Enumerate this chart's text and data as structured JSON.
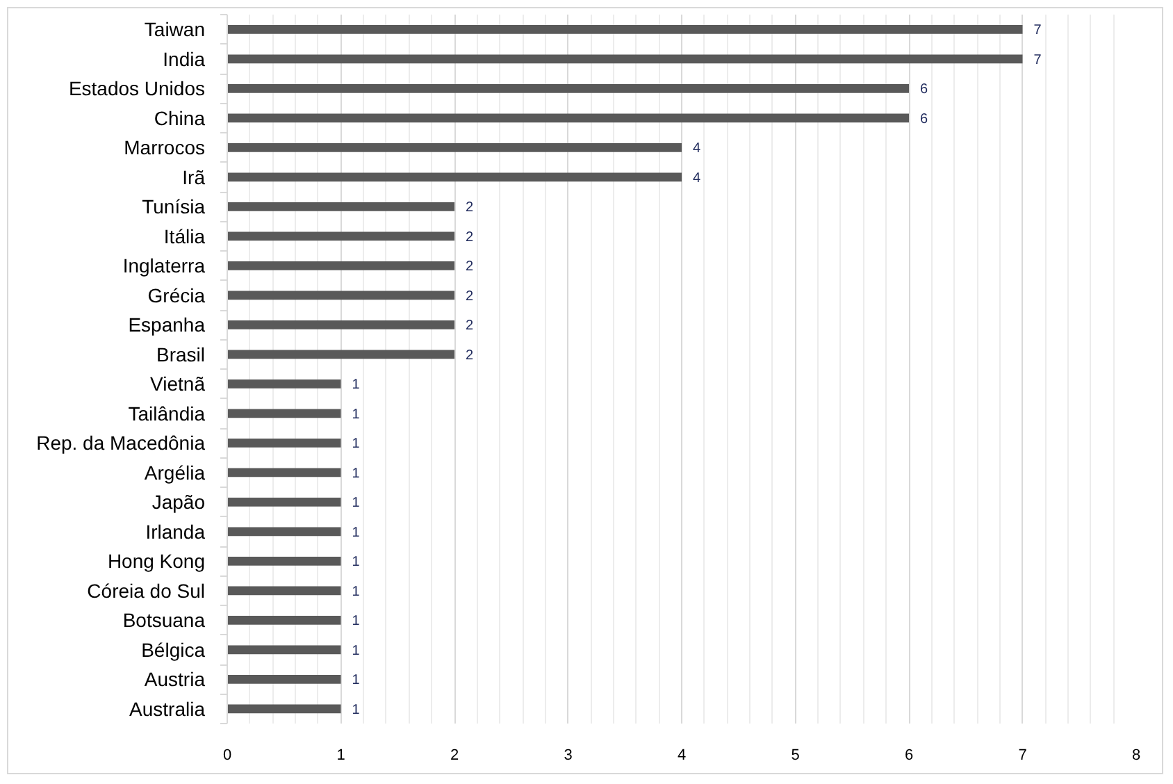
{
  "chart_data": {
    "type": "bar",
    "orientation": "horizontal",
    "categories": [
      "Taiwan",
      "India",
      "Estados Unidos",
      "China",
      "Marrocos",
      "Irã",
      "Tunísia",
      "Itália",
      "Inglaterra",
      "Grécia",
      "Espanha",
      "Brasil",
      "Vietnã",
      "Tailândia",
      "Rep. da Macedônia",
      "Argélia",
      "Japão",
      "Irlanda",
      "Hong Kong",
      "Córeia do Sul",
      "Botsuana",
      "Bélgica",
      "Austria",
      "Australia"
    ],
    "values": [
      7,
      7,
      6,
      6,
      4,
      4,
      2,
      2,
      2,
      2,
      2,
      2,
      1,
      1,
      1,
      1,
      1,
      1,
      1,
      1,
      1,
      1,
      1,
      1
    ],
    "color": "#595959",
    "xlim": [
      0,
      8
    ],
    "xticks": [
      0,
      1,
      2,
      3,
      4,
      5,
      6,
      7,
      8
    ],
    "grid": "x",
    "data_labels": true
  }
}
